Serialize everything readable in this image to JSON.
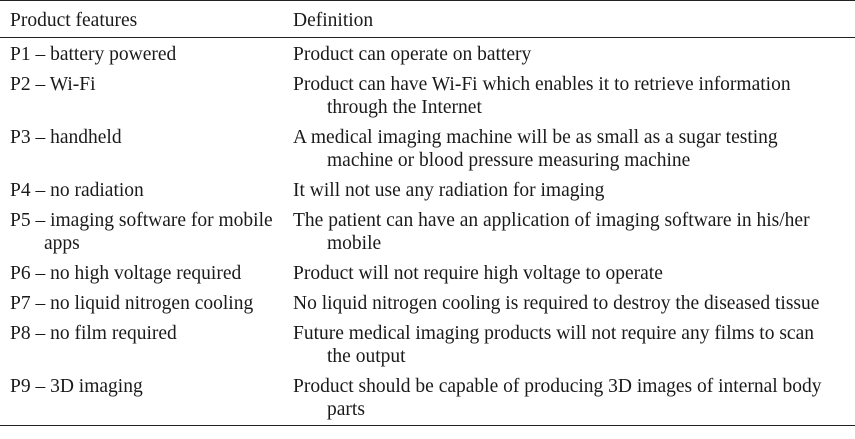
{
  "table": {
    "headers": [
      "Product features",
      "Definition"
    ],
    "rows": [
      {
        "feature": "P1 – battery powered",
        "definition": "Product can operate on battery"
      },
      {
        "feature": "P2 – Wi-Fi",
        "definition": "Product can have Wi-Fi which enables it to retrieve information through the Internet"
      },
      {
        "feature": "P3 – handheld",
        "definition": "A medical imaging machine will be as small as a sugar testing machine or blood pressure measuring machine"
      },
      {
        "feature": "P4 – no radiation",
        "definition": "It will not use any radiation for imaging"
      },
      {
        "feature": "P5 – imaging software for mobile apps",
        "definition": "The patient can have an application of imaging software in his/her mobile"
      },
      {
        "feature": "P6 – no high voltage required",
        "definition": "Product will not require high voltage to operate"
      },
      {
        "feature": "P7 – no liquid nitrogen cooling",
        "definition": "No liquid nitrogen cooling is required to destroy the diseased tissue"
      },
      {
        "feature": "P8 – no film required",
        "definition": "Future medical imaging products will not require any films to scan the output"
      },
      {
        "feature": "P9 – 3D imaging",
        "definition": "Product should be capable of producing 3D images of internal body parts"
      }
    ]
  }
}
